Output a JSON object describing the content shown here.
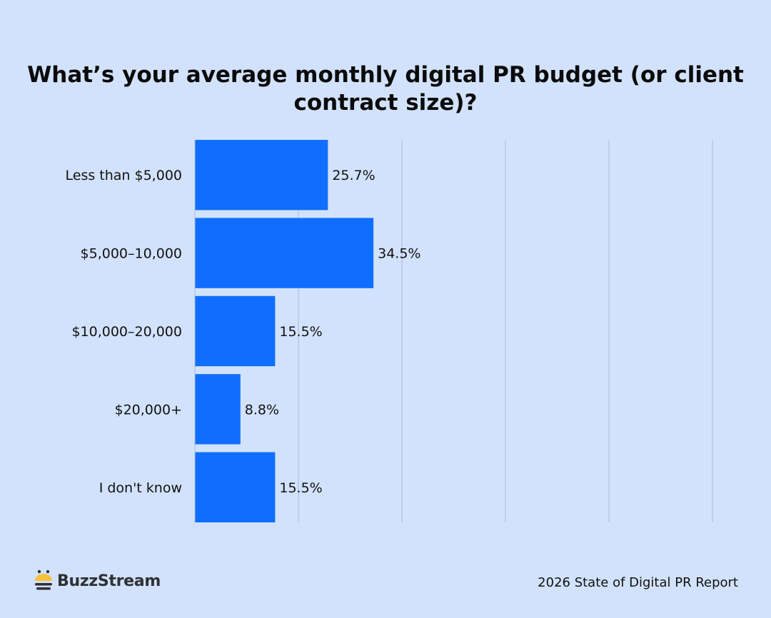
{
  "chart_data": {
    "type": "bar",
    "orientation": "horizontal",
    "title": "What’s your average monthly digital PR budget (or client contract size)?",
    "categories": [
      "Less than $5,000",
      "$5,000–10,000",
      "$10,000–20,000",
      "$20,000+",
      "I don't know"
    ],
    "values": [
      25.7,
      34.5,
      15.5,
      8.8,
      15.5
    ],
    "value_labels": [
      "25.7%",
      "34.5%",
      "15.5%",
      "8.8%",
      "15.5%"
    ],
    "xlim": [
      0,
      100
    ],
    "x_gridlines": [
      20,
      40,
      60,
      80,
      100
    ],
    "grid": true,
    "bar_color": "#0f6efd",
    "background": "#d2e2fc"
  },
  "branding": {
    "logo_text": "BuzzStream",
    "logo_icon": "bee-icon"
  },
  "footer": {
    "source": "2026 State of Digital PR Report"
  }
}
